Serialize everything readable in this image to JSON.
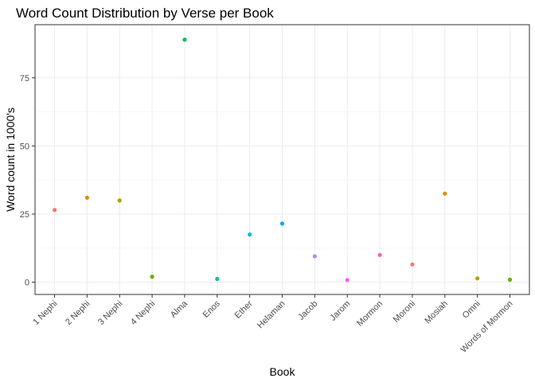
{
  "chart_data": {
    "type": "scatter",
    "title": "Word Count Distribution by Verse per Book",
    "xlabel": "Book",
    "ylabel": "Word count in 1000's",
    "categories": [
      "1 Nephi",
      "2 Nephi",
      "3 Nephi",
      "4 Nephi",
      "Alma",
      "Enos",
      "Ether",
      "Helaman",
      "Jacob",
      "Jarom",
      "Mormon",
      "Moroni",
      "Mosiah",
      "Omni",
      "Words of Mormon"
    ],
    "values": [
      26.5,
      31.0,
      30.0,
      2.0,
      89.0,
      1.2,
      17.5,
      21.5,
      9.5,
      0.8,
      10.0,
      6.5,
      32.5,
      1.4,
      0.9
    ],
    "colors": [
      "#F8766D",
      "#DB8E00",
      "#AEA200",
      "#64B200",
      "#00BD5C",
      "#00C1A7",
      "#00BADE",
      "#00A6FF",
      "#B385FF",
      "#EF67EB",
      "#FF63B6",
      "#F8766D",
      "#DB8E00",
      "#AEA200",
      "#64B200"
    ],
    "yticks": [
      0,
      25,
      50,
      75
    ],
    "ylim": [
      -4.5,
      94.5
    ],
    "grid": true,
    "legend": "none"
  }
}
